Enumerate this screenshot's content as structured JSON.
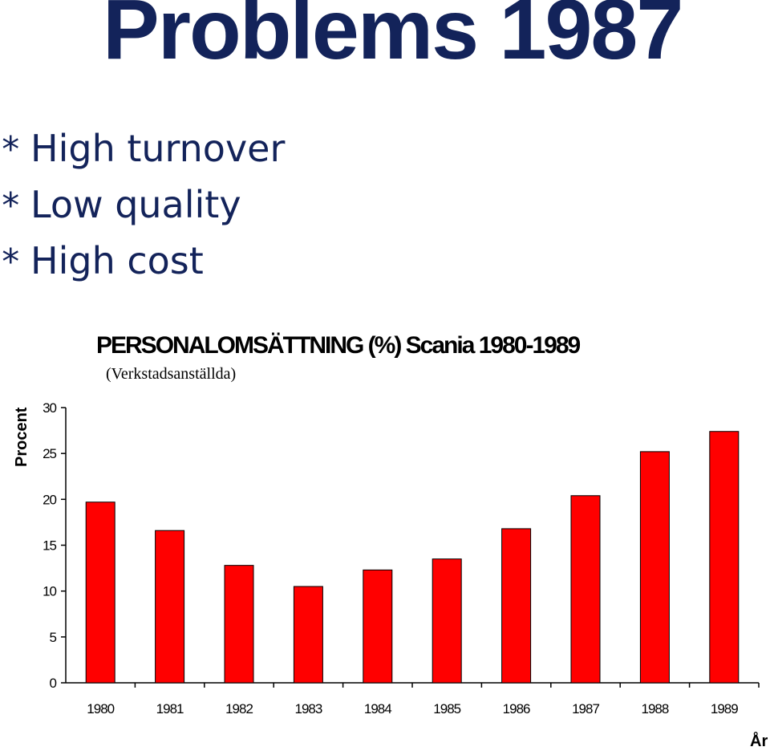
{
  "slide": {
    "title": "Problems 1987",
    "bullets": [
      {
        "marker": "*",
        "text": "High turnover"
      },
      {
        "marker": "*",
        "text": "Low quality"
      },
      {
        "marker": "*",
        "text": "High cost"
      }
    ]
  },
  "colors": {
    "title_text": "#13235a",
    "bar_fill": "#ff0000"
  },
  "chart_data": {
    "type": "bar",
    "title": "PERSONALOMSÄTTNING (%) Scania 1980-1989",
    "subtitle": "(Verkstadsanställda)",
    "xlabel": "År",
    "ylabel": "Procent",
    "ylim": [
      0,
      30
    ],
    "yticks": [
      0,
      5,
      10,
      15,
      20,
      25,
      30
    ],
    "grid": false,
    "categories": [
      "1980",
      "1981",
      "1982",
      "1983",
      "1984",
      "1985",
      "1986",
      "1987",
      "1988",
      "1989"
    ],
    "values": [
      19.7,
      16.6,
      12.8,
      10.5,
      12.3,
      13.5,
      16.8,
      20.4,
      25.2,
      27.4
    ]
  }
}
